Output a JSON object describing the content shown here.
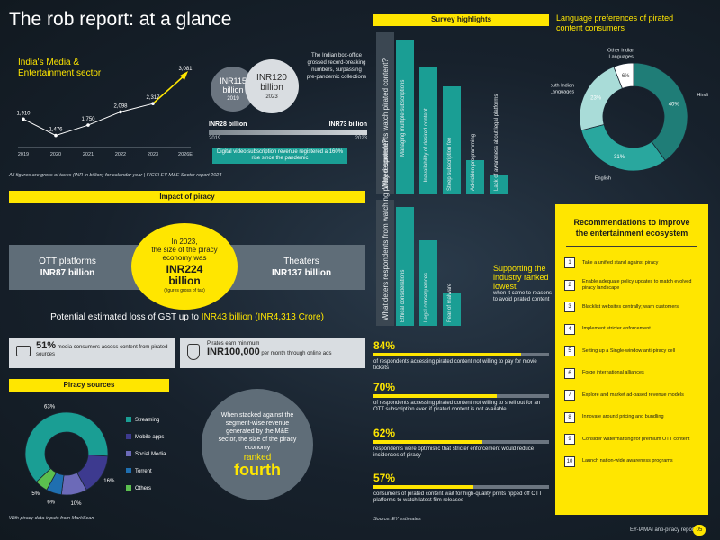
{
  "title": "The rob report: at a glance",
  "growth": {
    "title": "India's Media & Entertainment sector",
    "chart_data": {
      "type": "line",
      "categories": [
        "2019",
        "2020",
        "2021",
        "2022",
        "2023",
        "2026E"
      ],
      "values": [
        1910,
        1476,
        1750,
        2098,
        2317,
        3081
      ],
      "value_labels": [
        "1,910",
        "1,476",
        "1,750",
        "2,098",
        "2,317",
        "3,081"
      ]
    }
  },
  "box_office": {
    "a_value": "INR115 billion",
    "a_year": "2019",
    "b_value": "INR120 billion",
    "b_year": "2023",
    "note": "The Indian box-office grossed record-breaking numbers, surpassing pre-pandemic collections"
  },
  "digital_video": {
    "left_value": "INR28 billion",
    "right_value": "INR73 billion",
    "left_year": "2019",
    "right_year": "2023",
    "note": "Digital video subscription revenue registered a 160% rise since the pandemic"
  },
  "figures_note": "All figures are gross of taxes (INR in billion) for calendar year | FICCI EY M&E Sector report 2024",
  "impact": {
    "header": "Impact of piracy",
    "ott_label": "OTT platforms",
    "ott_value": "INR87 billion",
    "theaters_label": "Theaters",
    "theaters_value": "INR137 billion",
    "circle_line1": "In 2023,",
    "circle_line2": "the size of the piracy economy was",
    "circle_value": "INR224 billion",
    "circle_note": "(figures gross of tax)",
    "gst_prefix": "Potential estimated loss of GST up to ",
    "gst_value": "INR43 billion (INR4,313 Crore)",
    "stat_a_value": "51%",
    "stat_a_text": "media consumers access content from pirated sources",
    "stat_b_top": "Pirates earn minimum",
    "stat_b_value": "INR100,000",
    "stat_b_text": "per month through online ads"
  },
  "piracy_sources": {
    "header": "Piracy sources",
    "chart_data": {
      "type": "pie",
      "categories": [
        "Streaming",
        "Mobile apps",
        "Social Media",
        "Torrent",
        "Others"
      ],
      "values": [
        63,
        16,
        10,
        6,
        5
      ],
      "value_labels": [
        "63%",
        "16%",
        "10%",
        "6%",
        "5%"
      ],
      "colors": [
        "#1a9e94",
        "#3d3a8f",
        "#6c6ab8",
        "#1f6fb0",
        "#5bbf4f"
      ]
    },
    "source": "With piracy data inputs from MarkScan"
  },
  "fourth": {
    "text": "When stacked against the segment-wise revenue generated by the M&E sector, the size of the piracy economy",
    "ranked": "ranked",
    "value": "fourth"
  },
  "survey": {
    "header": "Survey highlights",
    "why_label": "Why respondents watch pirated content?",
    "why_chart": {
      "type": "bar",
      "categories": [
        "Managing multiple subscriptions",
        "Unavailability of desired content",
        "Steep subscription fee",
        "Ad-ridden programming",
        "Lack of awareness about legal platforms"
      ],
      "values": [
        100,
        82,
        70,
        22,
        12
      ]
    },
    "deter_label": "What deters respondents from watching pirated content?",
    "deter_chart": {
      "type": "bar",
      "categories": [
        "Ethical considerations",
        "Legal consequences",
        "Fear of malware"
      ],
      "values": [
        100,
        72,
        28
      ]
    },
    "support_title": "Supporting the industry ranked lowest",
    "support_sub": "when it came to reasons to avoid pirated content"
  },
  "language": {
    "title": "Language preferences of pirated content consumers",
    "chart_data": {
      "type": "pie",
      "categories": [
        "Hindi",
        "English",
        "South Indian Languages",
        "Other Indian Languages"
      ],
      "values": [
        40,
        31,
        23,
        6
      ],
      "value_labels": [
        "40%",
        "31%",
        "23%",
        "6%"
      ],
      "colors": [
        "#1f7d77",
        "#29a79e",
        "#a9dcd8",
        "#ffffff"
      ]
    }
  },
  "percent_stats": [
    {
      "value": "84%",
      "pct": 84,
      "text": "of respondents accessing pirated content not willing to pay for movie tickets"
    },
    {
      "value": "70%",
      "pct": 70,
      "text": "of respondents accessing pirated content not willing to shell out for an OTT subscription even if pirated content is not available"
    },
    {
      "value": "62%",
      "pct": 62,
      "text": "respondents were optimistic that stricter enforcement would reduce incidences of piracy"
    },
    {
      "value": "57%",
      "pct": 57,
      "text": "consumers of pirated content wait for high-quality prints ripped off OTT platforms to watch latest film releases"
    }
  ],
  "ey_source": "Source: EY estimates",
  "recommendations": {
    "title": "Recommendations to improve the entertainment ecosystem",
    "items": [
      {
        "num": "1",
        "text": "Take a unified stand against piracy"
      },
      {
        "num": "2",
        "text": "Enable adequate policy updates to match evolved piracy landscape"
      },
      {
        "num": "3",
        "text": "Blacklist websites centrally; warn customers"
      },
      {
        "num": "4",
        "text": "Implement stricter enforcement"
      },
      {
        "num": "5",
        "text": "Setting up a Single-window anti-piracy cell"
      },
      {
        "num": "6",
        "text": "Forge international alliances"
      },
      {
        "num": "7",
        "text": "Explore and market ad-based revenue models"
      },
      {
        "num": "8",
        "text": "Innovate around pricing and bundling"
      },
      {
        "num": "9",
        "text": "Consider watermarking for premium OTT content"
      },
      {
        "num": "10",
        "text": "Launch nation-wide awareness programs"
      }
    ]
  },
  "footer": {
    "text": "EY-IAMAI anti-piracy report",
    "page": "05"
  }
}
